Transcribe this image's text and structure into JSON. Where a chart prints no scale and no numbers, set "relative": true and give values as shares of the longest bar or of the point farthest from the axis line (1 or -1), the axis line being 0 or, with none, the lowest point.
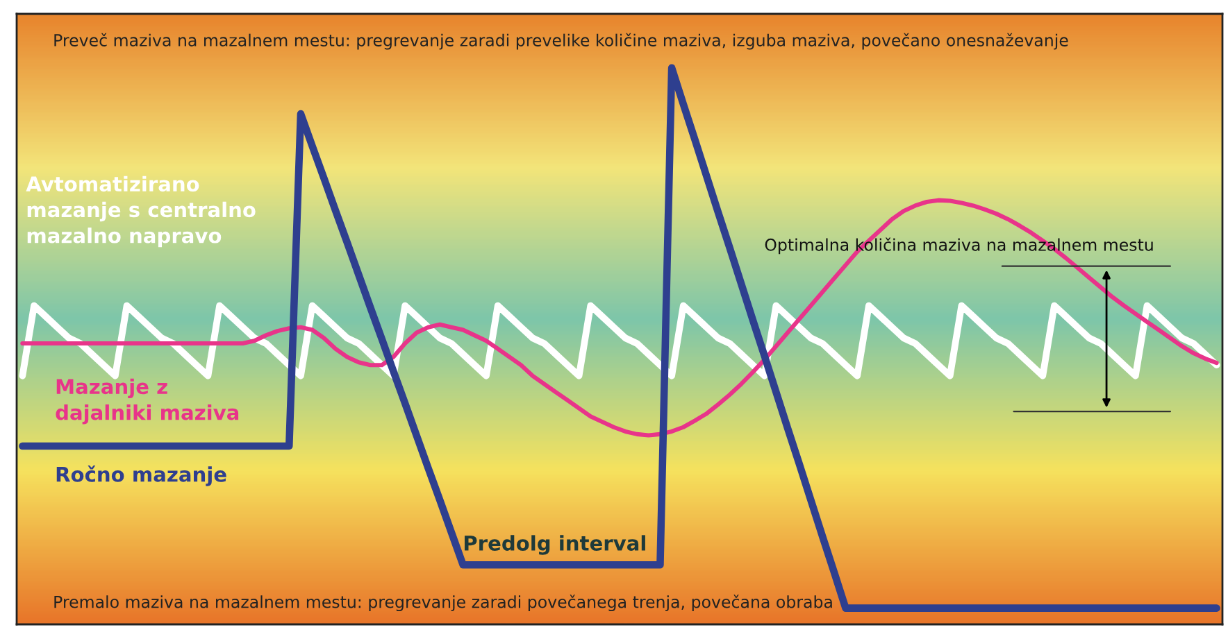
{
  "chart_data": {
    "type": "line",
    "relative": true,
    "legend": false,
    "tick_labels": false,
    "categories": [
      null,
      null,
      null,
      null,
      null,
      null,
      null,
      null,
      null,
      null,
      null,
      null,
      null,
      null,
      null,
      null,
      null,
      null,
      null,
      null,
      null,
      null,
      null,
      null,
      null,
      null,
      null,
      null,
      null,
      null,
      null,
      null,
      null,
      null,
      null,
      null,
      null,
      null,
      null,
      null,
      null,
      null,
      null,
      null,
      null,
      null,
      null,
      null,
      null,
      null,
      null,
      null,
      null,
      null,
      null,
      null,
      null,
      null,
      null,
      null,
      null,
      null,
      null,
      null,
      null,
      null,
      null,
      null,
      null,
      null,
      null,
      null,
      null,
      null,
      null,
      null,
      null,
      null,
      null,
      null,
      null,
      null,
      null,
      null,
      null,
      null,
      null,
      null,
      null,
      null,
      null,
      null,
      null,
      null,
      null,
      null,
      null,
      null,
      null,
      null,
      null,
      null,
      null,
      null
    ],
    "series": [
      {
        "name": "Avtomatizirano\nmazanje s centralno\nmazalno napravo",
        "color": "#ffffff",
        "values": [
          0.43,
          0.56,
          0.54,
          0.52,
          0.5,
          0.49,
          0.47,
          0.45,
          0.43,
          0.56,
          0.54,
          0.52,
          0.5,
          0.49,
          0.47,
          0.45,
          0.43,
          0.56,
          0.54,
          0.52,
          0.5,
          0.49,
          0.47,
          0.45,
          0.43,
          0.56,
          0.54,
          0.52,
          0.5,
          0.49,
          0.47,
          0.45,
          0.43,
          0.56,
          0.54,
          0.52,
          0.5,
          0.49,
          0.47,
          0.45,
          0.43,
          0.56,
          0.54,
          0.52,
          0.5,
          0.49,
          0.47,
          0.45,
          0.43,
          0.56,
          0.54,
          0.52,
          0.5,
          0.49,
          0.47,
          0.45,
          0.43,
          0.56,
          0.54,
          0.52,
          0.5,
          0.49,
          0.47,
          0.45,
          0.43,
          0.56,
          0.54,
          0.52,
          0.5,
          0.49,
          0.47,
          0.45,
          0.43,
          0.56,
          0.54,
          0.52,
          0.5,
          0.49,
          0.47,
          0.45,
          0.43,
          0.56,
          0.54,
          0.52,
          0.5,
          0.49,
          0.47,
          0.45,
          0.43,
          0.56,
          0.54,
          0.52,
          0.5,
          0.49,
          0.47,
          0.45,
          0.43,
          0.56,
          0.54,
          0.52,
          0.5,
          0.49,
          0.47,
          0.45
        ]
      },
      {
        "name": "Mazanje z\ndajalniki maziva",
        "color": "#e8348a",
        "values": [
          0.49,
          0.49,
          0.49,
          0.49,
          0.49,
          0.49,
          0.49,
          0.49,
          0.49,
          0.49,
          0.49,
          0.49,
          0.49,
          0.49,
          0.49,
          0.49,
          0.49,
          0.49,
          0.49,
          0.49,
          0.495,
          0.505,
          0.513,
          0.518,
          0.52,
          0.515,
          0.5,
          0.48,
          0.465,
          0.455,
          0.45,
          0.45,
          0.465,
          0.49,
          0.51,
          0.52,
          0.525,
          0.52,
          0.515,
          0.505,
          0.495,
          0.48,
          0.465,
          0.45,
          0.43,
          0.415,
          0.4,
          0.385,
          0.37,
          0.355,
          0.345,
          0.335,
          0.327,
          0.322,
          0.32,
          0.322,
          0.327,
          0.335,
          0.347,
          0.36,
          0.377,
          0.395,
          0.415,
          0.437,
          0.46,
          0.485,
          0.51,
          0.535,
          0.56,
          0.585,
          0.61,
          0.635,
          0.66,
          0.68,
          0.7,
          0.72,
          0.735,
          0.745,
          0.752,
          0.755,
          0.754,
          0.75,
          0.745,
          0.738,
          0.73,
          0.72,
          0.708,
          0.695,
          0.68,
          0.665,
          0.648,
          0.63,
          0.612,
          0.594,
          0.576,
          0.56,
          0.545,
          0.53,
          0.515,
          0.5,
          0.485,
          0.472,
          0.462,
          0.454
        ]
      },
      {
        "name": "Ročno mazanje",
        "color": "#2e3f8f",
        "values": [
          0.3,
          0.3,
          0.3,
          0.3,
          0.3,
          0.3,
          0.3,
          0.3,
          0.3,
          0.3,
          0.3,
          0.3,
          0.3,
          0.3,
          0.3,
          0.3,
          0.3,
          0.3,
          0.3,
          0.3,
          0.3,
          0.3,
          0.3,
          0.3,
          0.915,
          0.855,
          0.796,
          0.736,
          0.677,
          0.617,
          0.557,
          0.498,
          0.438,
          0.379,
          0.319,
          0.259,
          0.2,
          0.14,
          0.08,
          0.08,
          0.08,
          0.08,
          0.08,
          0.08,
          0.08,
          0.08,
          0.08,
          0.08,
          0.08,
          0.08,
          0.08,
          0.08,
          0.08,
          0.08,
          0.08,
          0.08,
          1.0,
          0.933,
          0.867,
          0.8,
          0.733,
          0.667,
          0.6,
          0.533,
          0.467,
          0.4,
          0.333,
          0.267,
          0.2,
          0.133,
          0.067,
          0,
          0,
          0,
          0,
          0,
          0,
          0,
          0,
          0,
          0,
          0,
          0,
          0,
          0,
          0,
          0,
          0,
          0,
          0,
          0,
          0,
          0,
          0,
          0,
          0,
          0,
          0,
          0,
          0,
          0,
          0,
          0,
          0
        ]
      }
    ],
    "annotations": [
      "Preveč maziva na mazalnem mestu: pregrevanje zaradi prevelike količine maziva, izguba maziva, povečano onesnaževanje",
      "Premalo maziva na mazalnem mestu: pregrevanje zaradi povečanega trenja, povečana obraba",
      "Predolg interval",
      "Optimalna količina maziva na mazalnem mestu"
    ]
  }
}
